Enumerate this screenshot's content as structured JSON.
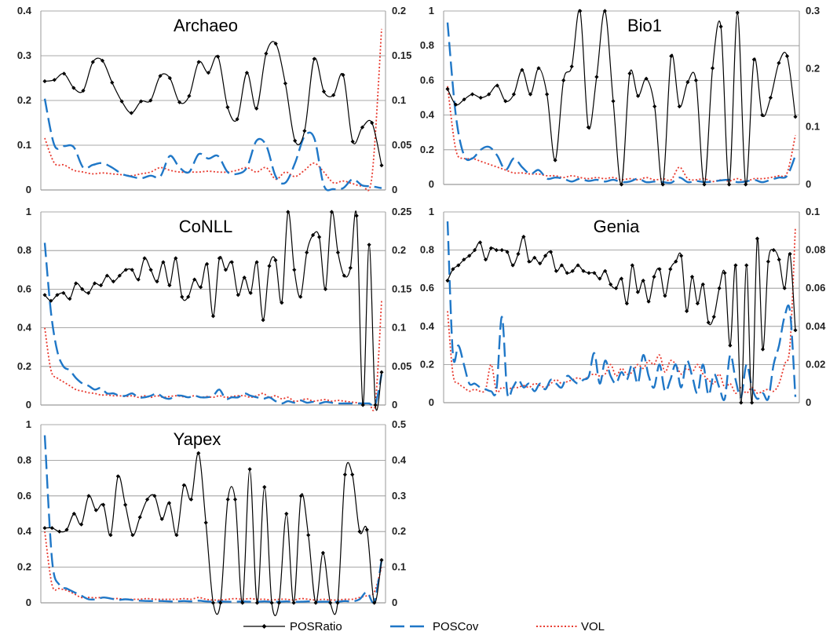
{
  "chart_data": [
    {
      "type": "line",
      "title": "Archaeo",
      "ylim": [
        0,
        0.4
      ],
      "y_ticks": [
        "0",
        "0.1",
        "0.2",
        "0.3",
        "0.4"
      ],
      "y2lim": [
        0,
        0.2
      ],
      "y2_ticks": [
        "0",
        "0.05",
        "0.1",
        "0.15",
        "0.2"
      ],
      "grid": true,
      "series": [
        {
          "name": "POSRatio",
          "axis": "left",
          "values": [
            0.243,
            0.246,
            0.26,
            0.228,
            0.222,
            0.286,
            0.289,
            0.24,
            0.198,
            0.172,
            0.198,
            0.2,
            0.255,
            0.25,
            0.196,
            0.21,
            0.286,
            0.262,
            0.298,
            0.185,
            0.158,
            0.262,
            0.182,
            0.305,
            0.327,
            0.238,
            0.11,
            0.132,
            0.293,
            0.22,
            0.212,
            0.257,
            0.108,
            0.14,
            0.15,
            0.055
          ]
        },
        {
          "name": "POSCov",
          "axis": "right",
          "values": [
            0.102,
            0.05,
            0.049,
            0.048,
            0.025,
            0.028,
            0.03,
            0.025,
            0.018,
            0.015,
            0.013,
            0.016,
            0.015,
            0.038,
            0.025,
            0.02,
            0.04,
            0.035,
            0.038,
            0.02,
            0.018,
            0.025,
            0.055,
            0.05,
            0.015,
            0.008,
            0.03,
            0.06,
            0.058,
            0.005,
            0.001,
            0.002,
            0.012,
            0.005,
            0.004,
            0.002
          ]
        },
        {
          "name": "VOL",
          "axis": "right",
          "values": [
            0.058,
            0.03,
            0.028,
            0.022,
            0.02,
            0.018,
            0.019,
            0.018,
            0.017,
            0.016,
            0.018,
            0.02,
            0.025,
            0.022,
            0.02,
            0.02,
            0.02,
            0.021,
            0.02,
            0.02,
            0.022,
            0.025,
            0.02,
            0.025,
            0.012,
            0.02,
            0.015,
            0.022,
            0.03,
            0.02,
            0.008,
            0.01,
            0.007,
            0.005,
            0.015,
            0.18
          ]
        }
      ]
    },
    {
      "type": "line",
      "title": "Bio1",
      "ylim": [
        0,
        1
      ],
      "y_ticks": [
        "0",
        "0.2",
        "0.4",
        "0.6",
        "0.8",
        "1"
      ],
      "y2lim": [
        0,
        0.3
      ],
      "y2_ticks": [
        "0",
        "0.1",
        "0.2",
        "0.3"
      ],
      "grid": true,
      "series": [
        {
          "name": "POSRatio",
          "axis": "left",
          "values": [
            0.55,
            0.46,
            0.49,
            0.52,
            0.5,
            0.52,
            0.57,
            0.48,
            0.52,
            0.66,
            0.52,
            0.67,
            0.52,
            0.14,
            0.6,
            0.68,
            1.0,
            0.33,
            0.62,
            1.0,
            0.48,
            0.0,
            0.64,
            0.51,
            0.61,
            0.45,
            0.0,
            0.74,
            0.45,
            0.59,
            0.6,
            0.0,
            0.67,
            0.91,
            0.0,
            0.99,
            0.0,
            0.72,
            0.4,
            0.5,
            0.7,
            0.74,
            0.39
          ]
        },
        {
          "name": "POSCov",
          "axis": "right",
          "values": [
            0.28,
            0.12,
            0.05,
            0.045,
            0.06,
            0.065,
            0.05,
            0.025,
            0.045,
            0.03,
            0.018,
            0.025,
            0.01,
            0.012,
            0.01,
            0.005,
            0.01,
            0.006,
            0.008,
            0.005,
            0.008,
            0.004,
            0.005,
            0.01,
            0.004,
            0.005,
            0.004,
            0.003,
            0.012,
            0.004,
            0.006,
            0.004,
            0.005,
            0.007,
            0.008,
            0.004,
            0.005,
            0.008,
            0.004,
            0.008,
            0.012,
            0.015,
            0.05
          ]
        },
        {
          "name": "VOL",
          "axis": "right",
          "values": [
            0.17,
            0.06,
            0.045,
            0.045,
            0.04,
            0.035,
            0.03,
            0.025,
            0.02,
            0.02,
            0.018,
            0.018,
            0.015,
            0.015,
            0.012,
            0.015,
            0.012,
            0.01,
            0.012,
            0.01,
            0.012,
            0.008,
            0.01,
            0.008,
            0.012,
            0.008,
            0.01,
            0.008,
            0.03,
            0.01,
            0.008,
            0.01,
            0.005,
            0.008,
            0.006,
            0.01,
            0.005,
            0.01,
            0.01,
            0.012,
            0.015,
            0.02,
            0.085
          ]
        }
      ]
    },
    {
      "type": "line",
      "title": "CoNLL",
      "ylim": [
        0,
        1
      ],
      "y_ticks": [
        "0",
        "0.2",
        "0.4",
        "0.6",
        "0.8",
        "1"
      ],
      "y2lim": [
        0,
        0.25
      ],
      "y2_ticks": [
        "0",
        "0.05",
        "0.1",
        "0.15",
        "0.2",
        "0.25"
      ],
      "grid": true,
      "series": [
        {
          "name": "POSRatio",
          "axis": "left",
          "values": [
            0.57,
            0.54,
            0.57,
            0.58,
            0.55,
            0.63,
            0.6,
            0.58,
            0.63,
            0.62,
            0.67,
            0.64,
            0.67,
            0.7,
            0.7,
            0.65,
            0.76,
            0.7,
            0.64,
            0.74,
            0.62,
            0.76,
            0.56,
            0.56,
            0.65,
            0.61,
            0.73,
            0.46,
            0.76,
            0.7,
            0.74,
            0.57,
            0.66,
            0.58,
            0.74,
            0.44,
            0.72,
            0.75,
            0.53,
            1.0,
            0.7,
            0.56,
            0.79,
            0.88,
            0.87,
            0.6,
            1.0,
            0.79,
            0.67,
            0.71,
            0.98,
            0.0,
            0.83,
            0.0,
            0.17
          ]
        },
        {
          "name": "POSCov",
          "axis": "right",
          "values": [
            0.21,
            0.12,
            0.07,
            0.05,
            0.045,
            0.035,
            0.028,
            0.025,
            0.02,
            0.022,
            0.015,
            0.015,
            0.012,
            0.012,
            0.015,
            0.01,
            0.01,
            0.012,
            0.015,
            0.01,
            0.008,
            0.012,
            0.012,
            0.01,
            0.012,
            0.01,
            0.01,
            0.012,
            0.02,
            0.008,
            0.01,
            0.01,
            0.015,
            0.012,
            0.01,
            0.008,
            0.01,
            0.005,
            0.002,
            0.005,
            0.003,
            0.006,
            0.003,
            0.004,
            0.002,
            0.004,
            0.003,
            0.002,
            0.002,
            0.002,
            0.002,
            0.002,
            0.002,
            0.001,
            0.04
          ]
        },
        {
          "name": "VOL",
          "axis": "right",
          "values": [
            0.1,
            0.045,
            0.035,
            0.03,
            0.025,
            0.02,
            0.018,
            0.016,
            0.015,
            0.013,
            0.013,
            0.012,
            0.012,
            0.011,
            0.012,
            0.01,
            0.012,
            0.01,
            0.012,
            0.01,
            0.011,
            0.012,
            0.011,
            0.01,
            0.012,
            0.01,
            0.011,
            0.01,
            0.012,
            0.01,
            0.011,
            0.012,
            0.012,
            0.01,
            0.012,
            0.015,
            0.01,
            0.012,
            0.008,
            0.01,
            0.005,
            0.006,
            0.008,
            0.005,
            0.006,
            0.007,
            0.005,
            0.006,
            0.005,
            0.004,
            0.003,
            0.002,
            0.002,
            0.003,
            0.135
          ]
        }
      ]
    },
    {
      "type": "line",
      "title": "Genia",
      "ylim": [
        0,
        1
      ],
      "y_ticks": [
        "0",
        "0.2",
        "0.4",
        "0.6",
        "0.8",
        "1"
      ],
      "y2lim": [
        0,
        0.1
      ],
      "y2_ticks": [
        "0",
        "0.02",
        "0.04",
        "0.06",
        "0.08",
        "0.1"
      ],
      "grid": true,
      "series": [
        {
          "name": "POSRatio",
          "axis": "left",
          "values": [
            0.64,
            0.7,
            0.72,
            0.75,
            0.77,
            0.8,
            0.84,
            0.75,
            0.81,
            0.8,
            0.8,
            0.79,
            0.72,
            0.78,
            0.87,
            0.74,
            0.76,
            0.73,
            0.77,
            0.79,
            0.69,
            0.72,
            0.68,
            0.69,
            0.72,
            0.69,
            0.68,
            0.68,
            0.65,
            0.69,
            0.62,
            0.6,
            0.65,
            0.52,
            0.72,
            0.58,
            0.64,
            0.53,
            0.66,
            0.7,
            0.56,
            0.7,
            0.74,
            0.77,
            0.48,
            0.66,
            0.52,
            0.62,
            0.42,
            0.45,
            0.6,
            0.68,
            0.3,
            0.72,
            0.0,
            0.72,
            0.0,
            0.86,
            0.28,
            0.74,
            0.8,
            0.75,
            0.6,
            0.78,
            0.38
          ]
        },
        {
          "name": "POSCov",
          "axis": "right",
          "values": [
            0.095,
            0.025,
            0.03,
            0.02,
            0.01,
            0.01,
            0.008,
            0.007,
            0.006,
            0.007,
            0.045,
            0.005,
            0.008,
            0.012,
            0.008,
            0.01,
            0.006,
            0.01,
            0.007,
            0.012,
            0.01,
            0.008,
            0.014,
            0.012,
            0.01,
            0.012,
            0.014,
            0.026,
            0.01,
            0.022,
            0.014,
            0.01,
            0.016,
            0.012,
            0.02,
            0.01,
            0.025,
            0.014,
            0.008,
            0.02,
            0.006,
            0.012,
            0.02,
            0.008,
            0.022,
            0.014,
            0.005,
            0.02,
            0.004,
            0.015,
            0.008,
            0.002,
            0.025,
            0.012,
            0.003,
            0.02,
            0.008,
            0.002,
            0.005,
            0.002,
            0.02,
            0.03,
            0.045,
            0.048,
            0.003
          ]
        },
        {
          "name": "VOL",
          "axis": "right",
          "values": [
            0.048,
            0.015,
            0.01,
            0.008,
            0.006,
            0.007,
            0.006,
            0.007,
            0.02,
            0.006,
            0.008,
            0.007,
            0.008,
            0.008,
            0.009,
            0.008,
            0.01,
            0.009,
            0.008,
            0.01,
            0.012,
            0.01,
            0.011,
            0.012,
            0.013,
            0.012,
            0.014,
            0.015,
            0.014,
            0.015,
            0.02,
            0.014,
            0.018,
            0.015,
            0.016,
            0.02,
            0.018,
            0.022,
            0.02,
            0.025,
            0.016,
            0.022,
            0.02,
            0.015,
            0.018,
            0.016,
            0.02,
            0.015,
            0.012,
            0.01,
            0.015,
            0.008,
            0.01,
            0.005,
            0.008,
            0.005,
            0.008,
            0.005,
            0.006,
            0.007,
            0.006,
            0.01,
            0.02,
            0.03,
            0.092
          ]
        }
      ]
    },
    {
      "type": "line",
      "title": "Yapex",
      "ylim": [
        0,
        1
      ],
      "y_ticks": [
        "0",
        "0.2",
        "0.4",
        "0.6",
        "0.8",
        "1"
      ],
      "y2lim": [
        0,
        0.5
      ],
      "y2_ticks": [
        "0",
        "0.1",
        "0.2",
        "0.3",
        "0.4",
        "0.5"
      ],
      "grid": true,
      "series": [
        {
          "name": "POSRatio",
          "axis": "left",
          "values": [
            0.42,
            0.42,
            0.4,
            0.41,
            0.5,
            0.44,
            0.6,
            0.52,
            0.55,
            0.38,
            0.71,
            0.55,
            0.38,
            0.48,
            0.58,
            0.6,
            0.47,
            0.56,
            0.38,
            0.66,
            0.58,
            0.84,
            0.45,
            0.0,
            0.0,
            0.58,
            0.58,
            0.0,
            0.75,
            0.0,
            0.65,
            0.0,
            0.0,
            0.5,
            0.0,
            0.6,
            0.38,
            0.0,
            0.28,
            0.0,
            0.0,
            0.72,
            0.72,
            0.4,
            0.41,
            0.0,
            0.24
          ]
        },
        {
          "name": "POSCov",
          "axis": "right",
          "values": [
            0.47,
            0.12,
            0.05,
            0.04,
            0.03,
            0.02,
            0.01,
            0.01,
            0.015,
            0.012,
            0.008,
            0.01,
            0.008,
            0.006,
            0.005,
            0.005,
            0.005,
            0.004,
            0.004,
            0.005,
            0.004,
            0.006,
            0.004,
            0.003,
            0.004,
            0.003,
            0.003,
            0.004,
            0.003,
            0.003,
            0.004,
            0.003,
            0.003,
            0.004,
            0.003,
            0.003,
            0.004,
            0.003,
            0.003,
            0.003,
            0.003,
            0.005,
            0.004,
            0.01,
            0.03,
            0.004,
            0.12
          ]
        },
        {
          "name": "VOL",
          "axis": "right",
          "values": [
            0.2,
            0.05,
            0.04,
            0.035,
            0.025,
            0.015,
            0.015,
            0.014,
            0.015,
            0.012,
            0.012,
            0.01,
            0.01,
            0.01,
            0.012,
            0.01,
            0.01,
            0.01,
            0.01,
            0.012,
            0.01,
            0.015,
            0.01,
            0.008,
            0.008,
            0.01,
            0.012,
            0.01,
            0.012,
            0.01,
            0.01,
            0.008,
            0.01,
            0.01,
            0.008,
            0.012,
            0.01,
            0.008,
            0.01,
            0.008,
            0.008,
            0.01,
            0.01,
            0.015,
            0.02,
            0.03,
            0.1
          ]
        }
      ]
    }
  ],
  "legend": [
    {
      "name": "POSRatio",
      "color": "#000000",
      "style": "solid-marker"
    },
    {
      "name": "POSCov",
      "color": "#1f77c7",
      "style": "long-dash"
    },
    {
      "name": "VOL",
      "color": "#e8392e",
      "style": "dotted"
    }
  ]
}
